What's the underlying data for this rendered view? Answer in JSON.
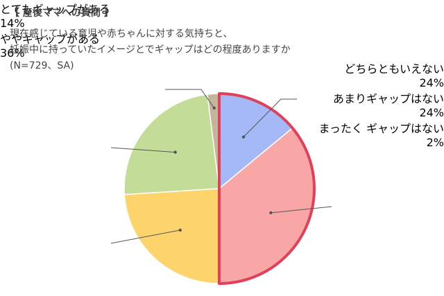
{
  "chart_data": {
    "type": "pie",
    "title": "【 産後ママへの質問 】",
    "subtitle": [
      "現在感じている育児や赤ちゃんに対する気持ちと、",
      "妊娠中に持っていたイメージとでギャップはどの程度ありますか",
      "(N=729、SA)"
    ],
    "categories": [
      "とてもギャップがある",
      "ややギャップがある",
      "どちらともいえない",
      "あまりギャップはない",
      "まったく\nギャップはない"
    ],
    "values": [
      14,
      36,
      24,
      24,
      2
    ],
    "value_labels": [
      "14%",
      "36%",
      "24%",
      "24%",
      "2%"
    ],
    "colors": [
      "#a4b9f6",
      "#f9a6a6",
      "#fcd46b",
      "#c3dc98",
      "#c4b59d"
    ],
    "highlight": [
      0,
      1
    ],
    "highlight_color": "#e0405a"
  }
}
